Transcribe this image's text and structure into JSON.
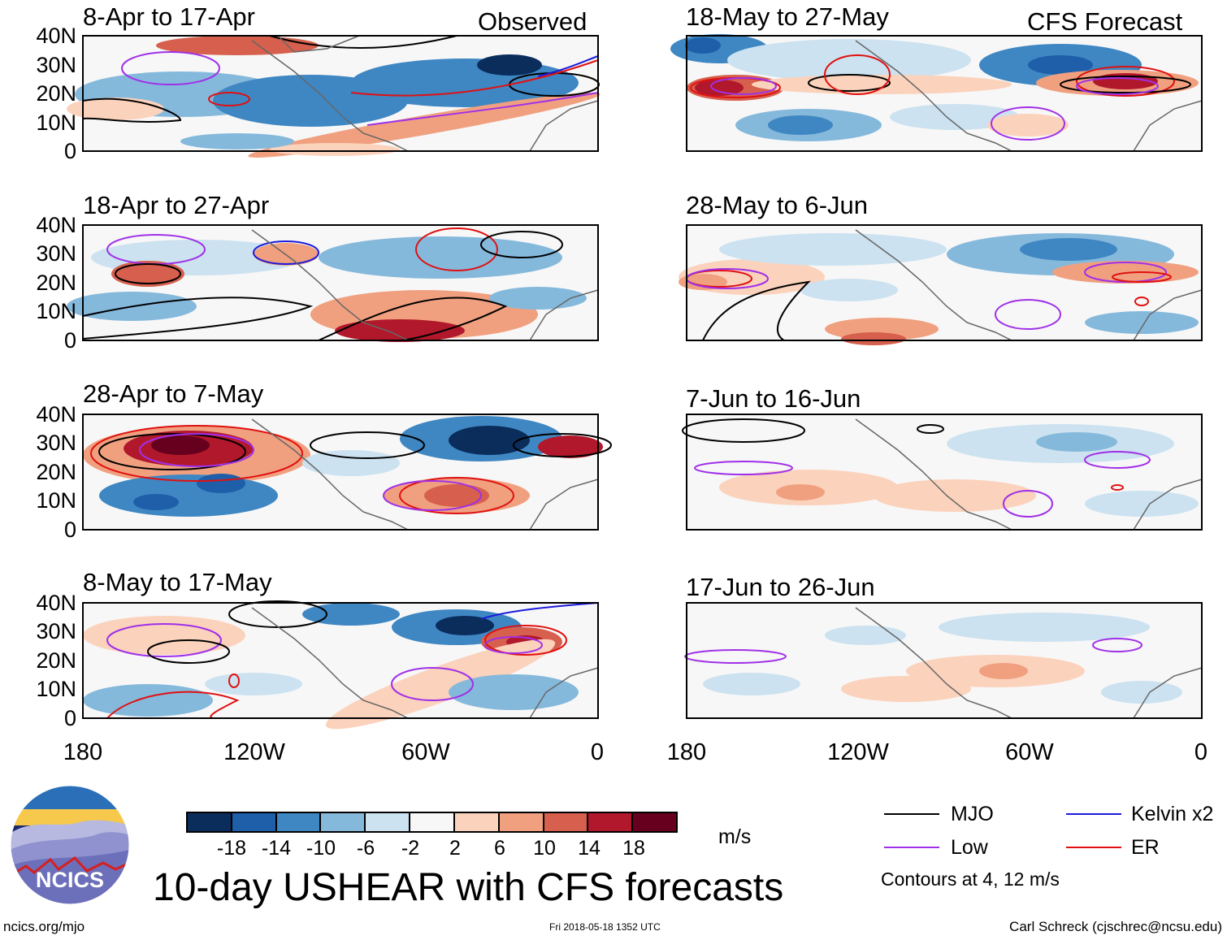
{
  "panels": {
    "left": [
      {
        "title": "8-Apr to 17-Apr",
        "tag": "Observed"
      },
      {
        "title": "18-Apr to 27-Apr",
        "tag": ""
      },
      {
        "title": "28-Apr to 7-May",
        "tag": ""
      },
      {
        "title": "8-May to 17-May",
        "tag": ""
      }
    ],
    "right": [
      {
        "title": "18-May to 27-May",
        "tag": "CFS Forecast"
      },
      {
        "title": "28-May to 6-Jun",
        "tag": ""
      },
      {
        "title": "7-Jun to 16-Jun",
        "tag": ""
      },
      {
        "title": "17-Jun to 26-Jun",
        "tag": ""
      }
    ]
  },
  "axes": {
    "y_labels": [
      "40N",
      "30N",
      "20N",
      "10N",
      "0"
    ],
    "x_labels": [
      "180",
      "120W",
      "60W",
      "0"
    ],
    "lat_range": [
      0,
      40
    ],
    "lon_range": [
      -180,
      0
    ]
  },
  "colorbar": {
    "tick_labels": [
      "-18",
      "-14",
      "-10",
      "-6",
      "-2",
      "2",
      "6",
      "10",
      "14",
      "18"
    ],
    "colors": [
      "#0b2d5c",
      "#1f5ea8",
      "#3f87c3",
      "#85b9dc",
      "#cce2f0",
      "#f7f7f7",
      "#fbd2bc",
      "#f0a07f",
      "#d6604d",
      "#b2182b",
      "#67001f"
    ],
    "units": "m/s"
  },
  "legend": {
    "items": [
      {
        "label": "MJO",
        "color": "#000000"
      },
      {
        "label": "Kelvin x2",
        "color": "#1a1adb"
      },
      {
        "label": "Low",
        "color": "#a030e8"
      },
      {
        "label": "ER",
        "color": "#e01010"
      }
    ],
    "note": "Contours at 4, 12 m/s"
  },
  "logo": {
    "text": "NCICS"
  },
  "title": "10-day USHEAR with CFS forecasts",
  "footer": {
    "left": "ncics.org/mjo",
    "center": "Fri 2018-05-18 1352 UTC",
    "right": "Carl Schreck (cjschrec@ncsu.edu)"
  }
}
